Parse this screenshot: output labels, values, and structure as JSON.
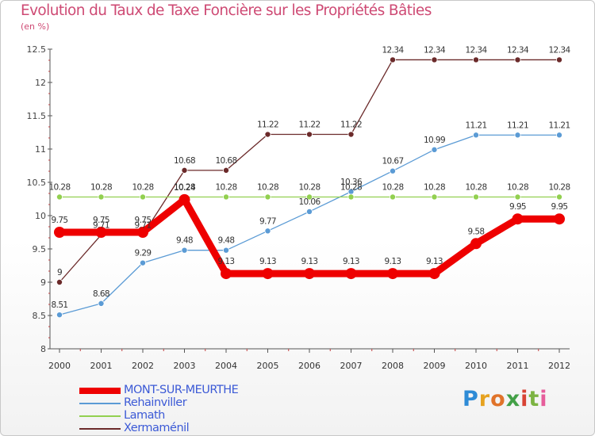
{
  "title": "Evolution du Taux de Taxe Foncière sur les Propriétés Bâties",
  "subtitle": "(en %)",
  "logo": {
    "text": "Proxiti",
    "letters": [
      "P",
      "r",
      "o",
      "x",
      "i",
      "t",
      "i"
    ],
    "colors": [
      "#2e8bd6",
      "#e6a21f",
      "#e0732a",
      "#43a047",
      "#d84335",
      "#7cb342",
      "#e65d9b"
    ]
  },
  "chart_data": {
    "type": "line",
    "title": "Evolution du Taux de Taxe Foncière sur les Propriétés Bâties",
    "ylabel": "(en %)",
    "xlabel": "",
    "x": [
      "2000",
      "2001",
      "2002",
      "2003",
      "2004",
      "2005",
      "2006",
      "2007",
      "2008",
      "2009",
      "2010",
      "2011",
      "2012"
    ],
    "ylim": [
      8,
      12.5
    ],
    "yticks": [
      "8",
      "8.5",
      "9",
      "9.5",
      "10",
      "10.5",
      "11",
      "11.5",
      "12",
      "12.5"
    ],
    "grid": false,
    "legend_position": "bottom-left",
    "series": [
      {
        "name": "Xermaménil",
        "color": "#6b2a2a",
        "values": [
          9,
          9.71,
          9.71,
          10.68,
          10.68,
          11.22,
          11.22,
          11.22,
          12.34,
          12.34,
          12.34,
          12.34,
          12.34
        ],
        "labels": [
          "9",
          "9.71",
          "9.71",
          "10.68",
          "10.68",
          "11.22",
          "11.22",
          "11.22",
          "12.34",
          "12.34",
          "12.34",
          "12.34",
          "12.34"
        ]
      },
      {
        "name": "Rehainviller",
        "color": "#5b9bd5",
        "values": [
          8.51,
          8.68,
          9.29,
          9.48,
          9.48,
          9.77,
          10.06,
          10.36,
          10.67,
          10.99,
          11.21,
          11.21,
          11.21
        ],
        "labels": [
          "8.51",
          "8.68",
          "9.29",
          "9.48",
          "9.48",
          "9.77",
          "10.06",
          "10.36",
          "10.67",
          "10.99",
          "11.21",
          "11.21",
          "11.21"
        ]
      },
      {
        "name": "Lamath",
        "color": "#92d050",
        "values": [
          10.28,
          10.28,
          10.28,
          10.28,
          10.28,
          10.28,
          10.28,
          10.28,
          10.28,
          10.28,
          10.28,
          10.28,
          10.28
        ],
        "labels": [
          "10.28",
          "10.28",
          "10.28",
          "10.28",
          "10.28",
          "10.28",
          "10.28",
          "10.28",
          "10.28",
          "10.28",
          "10.28",
          "10.28",
          "10.28"
        ]
      },
      {
        "name": "MONT-SUR-MEURTHE",
        "color": "#ee0000",
        "values": [
          9.75,
          9.75,
          9.75,
          10.24,
          9.13,
          9.13,
          9.13,
          9.13,
          9.13,
          9.13,
          9.58,
          9.95,
          9.95
        ],
        "labels": [
          "9.75",
          "9.75",
          "9.75",
          "10.24",
          "9.13",
          "9.13",
          "9.13",
          "9.13",
          "9.13",
          "9.13",
          "9.58",
          "9.95",
          "9.95"
        ]
      }
    ],
    "legend": [
      "MONT-SUR-MEURTHE",
      "Rehainviller",
      "Lamath",
      "Xermaménil"
    ]
  }
}
